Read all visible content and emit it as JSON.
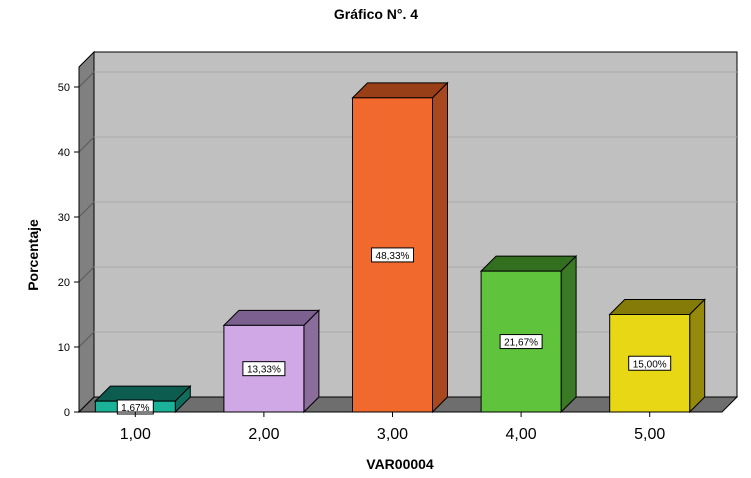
{
  "chart_data": {
    "type": "bar",
    "title": "Gráfico N°. 4",
    "xlabel": "VAR00004",
    "ylabel": "Porcentaje",
    "categories": [
      "1,00",
      "2,00",
      "3,00",
      "4,00",
      "5,00"
    ],
    "values": [
      1.67,
      13.33,
      48.33,
      21.67,
      15.0
    ],
    "data_labels": [
      "1,67%",
      "13,33%",
      "48,33%",
      "21,67%",
      "15,00%"
    ],
    "ylim": [
      0,
      50
    ],
    "yticks": [
      "0",
      "10",
      "20",
      "30",
      "40",
      "50"
    ],
    "grid": true,
    "legend": "none",
    "colors": [
      "#1ab39a",
      "#d0a8e6",
      "#f2692e",
      "#5fc43c",
      "#e8d714"
    ],
    "side_colors": [
      "#0f6e5e",
      "#8a6d9b",
      "#a8481f",
      "#3a7a24",
      "#958a0c"
    ],
    "top_colors": [
      "#0c5c4f",
      "#7b6090",
      "#983f18",
      "#327020",
      "#857b08"
    ],
    "panel_color": "#c0c0c0",
    "wall_color": "#808080",
    "floor_color": "#6e6e6e"
  }
}
